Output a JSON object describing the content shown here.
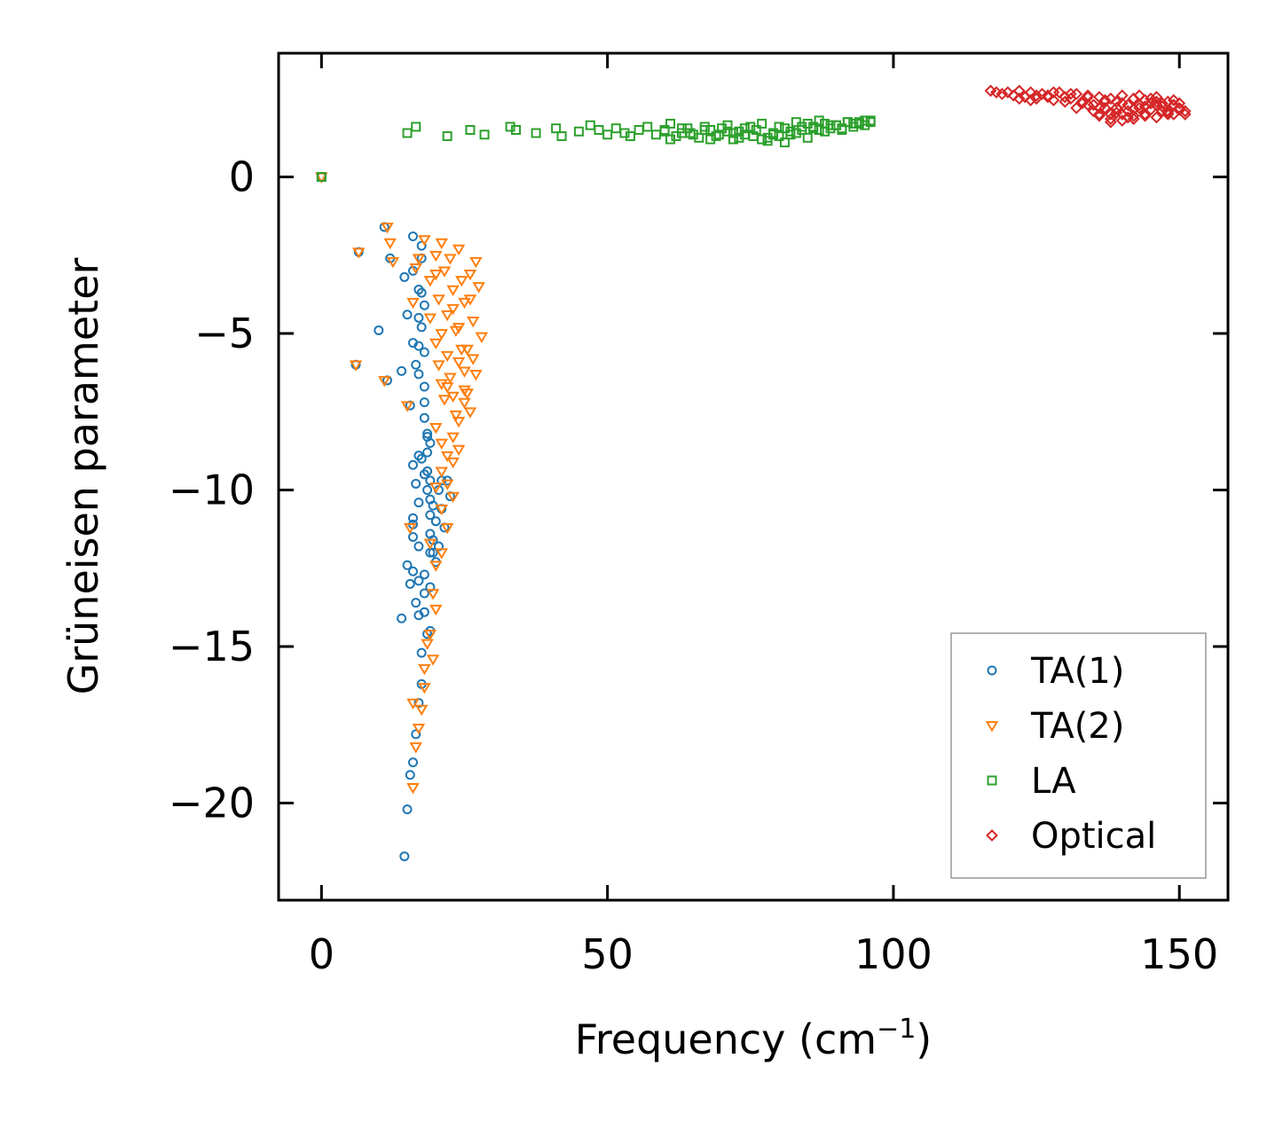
{
  "chart_data": {
    "type": "scatter",
    "title": "",
    "xlabel": "Frequency (cm",
    "xlabel_sup": "−1",
    "xlabel_close": ")",
    "ylabel": "Grüneisen parameter",
    "xlim": [
      -7.5,
      158.5
    ],
    "ylim": [
      -23.1,
      3.95
    ],
    "xticks": [
      0,
      50,
      100,
      150
    ],
    "xtick_labels": [
      "0",
      "50",
      "100",
      "150"
    ],
    "yticks": [
      0,
      -5,
      -10,
      -15,
      -20
    ],
    "ytick_labels": [
      "0",
      "−5",
      "−10",
      "−15",
      "−20"
    ],
    "grid": false,
    "legend_position": "bottom-right",
    "series": [
      {
        "name": "TA(1)",
        "marker": "circle",
        "color": "#1f77b4",
        "x": [
          0,
          6,
          6.5,
          10,
          11,
          11.5,
          12,
          14,
          14.5,
          15,
          15.5,
          16,
          16,
          16,
          16.5,
          17,
          17,
          17,
          17,
          17.5,
          17.5,
          17.5,
          17.5,
          18,
          18,
          18,
          18,
          18,
          18.5,
          18.5,
          18.5,
          18.5,
          19,
          19,
          19,
          19,
          19,
          19.5,
          19.5,
          20,
          20,
          20.5,
          21,
          21,
          21.5,
          22,
          22.5,
          15,
          15.5,
          16,
          16,
          16.5,
          17,
          17,
          17,
          18,
          18,
          18,
          19,
          19,
          17.5,
          17.5,
          17,
          16.5,
          16,
          15.5,
          15,
          14.5,
          14,
          18.5,
          19,
          16,
          17,
          16.5,
          16,
          16,
          17.5,
          18,
          18.5,
          17,
          19.5,
          20.5
        ],
        "y": [
          0,
          -6.0,
          -2.4,
          -4.9,
          -1.6,
          -6.5,
          -2.6,
          -6.2,
          -3.2,
          -4.4,
          -7.3,
          -1.9,
          -3.0,
          -5.3,
          -6.0,
          -3.6,
          -4.5,
          -5.4,
          -6.3,
          -2.2,
          -2.6,
          -3.7,
          -4.8,
          -4.1,
          -5.6,
          -6.7,
          -7.2,
          -7.7,
          -8.2,
          -8.8,
          -9.4,
          -10.0,
          -9.7,
          -10.3,
          -10.8,
          -11.4,
          -12.0,
          -10.5,
          -11.6,
          -12.3,
          -11.0,
          -10.0,
          -9.7,
          -10.6,
          -11.2,
          -9.7,
          -10.2,
          -12.4,
          -13.0,
          -11.5,
          -12.6,
          -13.6,
          -11.8,
          -12.9,
          -14.0,
          -12.7,
          -13.3,
          -13.9,
          -14.5,
          -13.1,
          -15.2,
          -16.2,
          -16.8,
          -17.8,
          -18.7,
          -19.1,
          -20.2,
          -21.7,
          -14.1,
          -14.6,
          -8.5,
          -9.2,
          -8.9,
          -9.8,
          -10.9,
          -11.1,
          -9.0,
          -9.5,
          -8.3,
          -10.4,
          -12.0,
          -11.8
        ]
      },
      {
        "name": "TA(2)",
        "marker": "triangle-down",
        "color": "#ff7f0e",
        "x": [
          0,
          6,
          6.5,
          11,
          11.5,
          12,
          12.5,
          15,
          16,
          16.5,
          17,
          18,
          19,
          20,
          20.5,
          21,
          21.5,
          22,
          22.5,
          23,
          23.5,
          24,
          24.5,
          25,
          25.5,
          26,
          26.5,
          27,
          27.5,
          28,
          20,
          20.5,
          21,
          21.5,
          22,
          22.5,
          23,
          23.5,
          24,
          24.5,
          25,
          25.5,
          26,
          26.5,
          27,
          20,
          21,
          22,
          23,
          24,
          25,
          21,
          22,
          23,
          24,
          20,
          21,
          22,
          23,
          19,
          20,
          21,
          19.5,
          20,
          19,
          19.5,
          18,
          18.5,
          18,
          17.5,
          17,
          16.5,
          16,
          16,
          15.5,
          19,
          20,
          21,
          22,
          23,
          24,
          25,
          26
        ],
        "y": [
          0,
          -6.0,
          -2.4,
          -6.5,
          -1.6,
          -2.1,
          -2.7,
          -7.3,
          -4.0,
          -2.9,
          -2.6,
          -2.0,
          -3.3,
          -2.5,
          -3.9,
          -2.1,
          -3.0,
          -4.4,
          -2.6,
          -3.6,
          -4.9,
          -2.3,
          -3.3,
          -4.0,
          -5.5,
          -3.1,
          -4.6,
          -2.7,
          -3.5,
          -5.1,
          -5.3,
          -6.0,
          -6.6,
          -7.1,
          -5.7,
          -6.4,
          -7.0,
          -7.6,
          -4.8,
          -5.5,
          -6.2,
          -6.9,
          -7.5,
          -5.8,
          -6.3,
          -8.0,
          -8.5,
          -8.9,
          -8.3,
          -7.8,
          -7.2,
          -9.4,
          -9.8,
          -9.1,
          -8.7,
          -9.9,
          -10.6,
          -11.2,
          -10.2,
          -11.7,
          -12.4,
          -12.0,
          -13.3,
          -13.8,
          -14.6,
          -15.4,
          -15.7,
          -14.9,
          -16.3,
          -17.0,
          -17.6,
          -18.2,
          -19.5,
          -16.8,
          -11.2,
          -4.5,
          -3.1,
          -5.0,
          -6.7,
          -4.2,
          -5.9,
          -6.8,
          -3.9
        ]
      },
      {
        "name": "LA",
        "marker": "square",
        "color": "#2ca02c",
        "x": [
          0,
          15,
          16.5,
          22,
          26,
          28.5,
          33,
          34,
          37.5,
          41,
          42,
          45,
          47,
          48.5,
          50,
          51.5,
          53,
          54,
          55.5,
          57,
          58.5,
          60,
          61,
          62,
          63,
          64.5,
          66,
          67,
          68,
          69.5,
          71,
          72,
          73,
          74,
          75.5,
          77,
          78,
          79,
          80,
          81,
          82,
          83,
          84,
          85,
          86,
          87,
          88,
          89,
          90,
          91,
          92,
          93,
          94,
          95,
          96,
          61,
          63,
          65,
          67,
          69,
          71,
          73,
          75,
          77,
          79,
          81,
          83,
          85,
          87,
          89,
          91,
          93,
          95,
          60,
          64,
          68,
          72,
          76,
          80,
          84,
          88,
          92,
          96,
          70,
          74,
          78,
          82,
          86,
          90,
          94
        ],
        "y": [
          0,
          1.4,
          1.6,
          1.3,
          1.5,
          1.35,
          1.6,
          1.5,
          1.4,
          1.55,
          1.3,
          1.45,
          1.65,
          1.5,
          1.35,
          1.55,
          1.4,
          1.3,
          1.5,
          1.6,
          1.35,
          1.45,
          1.7,
          1.3,
          1.55,
          1.4,
          1.25,
          1.6,
          1.5,
          1.35,
          1.65,
          1.2,
          1.45,
          1.55,
          1.3,
          1.7,
          1.15,
          1.4,
          1.6,
          1.1,
          1.35,
          1.75,
          1.5,
          1.25,
          1.6,
          1.8,
          1.45,
          1.55,
          1.65,
          1.5,
          1.75,
          1.6,
          1.7,
          1.8,
          1.75,
          1.2,
          1.4,
          1.35,
          1.5,
          1.3,
          1.45,
          1.25,
          1.6,
          1.2,
          1.35,
          1.55,
          1.4,
          1.7,
          1.5,
          1.65,
          1.55,
          1.7,
          1.65,
          1.5,
          1.55,
          1.2,
          1.4,
          1.5,
          1.3,
          1.6,
          1.7,
          1.75,
          1.8,
          1.55,
          1.35,
          1.25,
          1.45,
          1.55,
          1.65,
          1.75
        ]
      },
      {
        "name": "Optical",
        "marker": "diamond",
        "color": "#d62728",
        "x": [
          117,
          118,
          119,
          120,
          121,
          122,
          123,
          124,
          125,
          126,
          127,
          128,
          129,
          130,
          131,
          132,
          133,
          134,
          135,
          136,
          137,
          138,
          139,
          140,
          141,
          142,
          143,
          144,
          145,
          146,
          147,
          148,
          149,
          150,
          151,
          122,
          125,
          128,
          131,
          134,
          137,
          140,
          143,
          146,
          149,
          124,
          127,
          130,
          133,
          136,
          139,
          142,
          145,
          148,
          151,
          132,
          135,
          138,
          141,
          144,
          147,
          150,
          134,
          136,
          138,
          140,
          142,
          144,
          146,
          148,
          137,
          139,
          141,
          143,
          145,
          147,
          149,
          136,
          138,
          140,
          142,
          144,
          146,
          148,
          150
        ],
        "y": [
          2.75,
          2.7,
          2.65,
          2.7,
          2.6,
          2.75,
          2.55,
          2.7,
          2.5,
          2.65,
          2.6,
          2.45,
          2.7,
          2.55,
          2.5,
          2.65,
          2.4,
          2.6,
          2.3,
          2.55,
          2.2,
          2.5,
          2.4,
          2.6,
          2.3,
          2.5,
          2.2,
          2.45,
          2.35,
          2.55,
          2.25,
          2.4,
          2.3,
          2.2,
          2.1,
          2.5,
          2.6,
          2.7,
          2.65,
          2.55,
          2.45,
          2.35,
          2.6,
          2.4,
          2.0,
          2.45,
          2.55,
          2.4,
          2.35,
          2.2,
          2.05,
          1.95,
          2.15,
          2.05,
          2.0,
          2.2,
          2.1,
          2.0,
          1.9,
          2.0,
          2.1,
          2.15,
          2.3,
          2.0,
          1.85,
          1.8,
          1.85,
          1.95,
          1.9,
          2.0,
          2.4,
          2.2,
          2.1,
          2.3,
          2.5,
          2.35,
          2.45,
          1.95,
          1.75,
          2.0,
          2.15,
          2.25,
          2.3,
          2.1,
          2.35
        ]
      }
    ]
  }
}
